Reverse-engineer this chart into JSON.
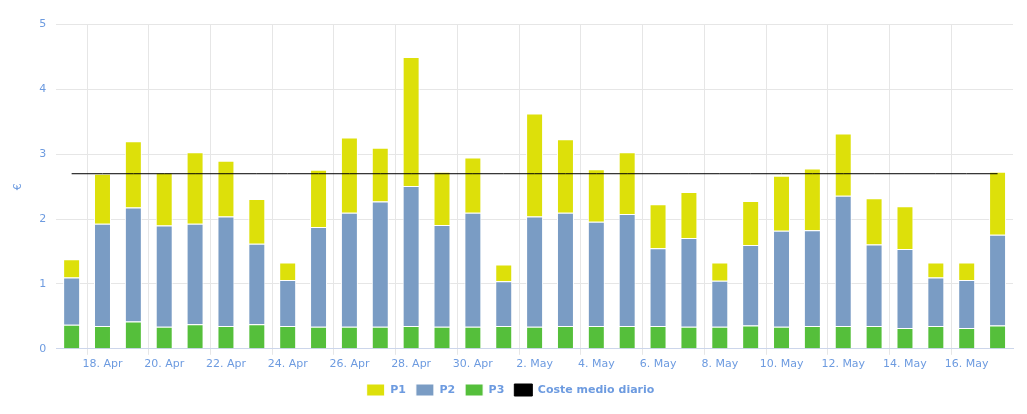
{
  "chart_data": {
    "type": "bar",
    "stacked": true,
    "ylabel": "€",
    "categories": [
      null,
      "18. Apr",
      null,
      "20. Apr",
      null,
      "22. Apr",
      null,
      "24. Apr",
      null,
      "26. Apr",
      null,
      "28. Apr",
      null,
      "30. Apr",
      null,
      "2. May",
      null,
      "4. May",
      null,
      "6. May",
      null,
      "8. May",
      null,
      "10. May",
      null,
      "12. May",
      null,
      "14. May",
      null,
      "16. May",
      null
    ],
    "series": [
      {
        "name": "P3",
        "color": "#55bf3b",
        "values": [
          0.37,
          0.35,
          0.42,
          0.34,
          0.38,
          0.35,
          0.38,
          0.35,
          0.34,
          0.34,
          0.34,
          0.35,
          0.34,
          0.34,
          0.35,
          0.34,
          0.35,
          0.35,
          0.35,
          0.35,
          0.34,
          0.34,
          0.36,
          0.34,
          0.35,
          0.35,
          0.35,
          0.32,
          0.35,
          0.32,
          0.36
        ]
      },
      {
        "name": "P2",
        "color": "#7a9cc4",
        "values": [
          0.73,
          1.58,
          1.76,
          1.56,
          1.55,
          1.69,
          1.24,
          0.71,
          1.54,
          1.76,
          1.93,
          2.16,
          1.57,
          1.76,
          0.69,
          1.7,
          1.75,
          1.61,
          1.73,
          1.2,
          1.37,
          0.71,
          1.24,
          1.48,
          1.48,
          2.01,
          1.26,
          1.22,
          0.75,
          0.74,
          1.4
        ]
      },
      {
        "name": "P1",
        "color": "#dde00a",
        "values": [
          0.28,
          0.77,
          1.02,
          0.82,
          1.1,
          0.86,
          0.69,
          0.27,
          0.88,
          1.16,
          0.83,
          1.99,
          0.82,
          0.85,
          0.26,
          1.59,
          1.13,
          0.81,
          0.95,
          0.68,
          0.71,
          0.28,
          0.68,
          0.85,
          0.95,
          0.96,
          0.71,
          0.66,
          0.23,
          0.27,
          0.97
        ]
      },
      {
        "name": "Coste medio diario",
        "type": "line",
        "color": "#000000",
        "marker": "none",
        "values": [
          2.7,
          2.7,
          2.7,
          2.7,
          2.7,
          2.7,
          2.7,
          2.7,
          2.7,
          2.7,
          2.7,
          2.7,
          2.7,
          2.7,
          2.7,
          2.7,
          2.7,
          2.7,
          2.7,
          2.7,
          2.7,
          2.7,
          2.7,
          2.7,
          2.7,
          2.7,
          2.7,
          2.7,
          2.7,
          2.7,
          2.7
        ]
      }
    ],
    "ylim": [
      0,
      5
    ],
    "yticks": [
      0,
      1,
      2,
      3,
      4,
      5
    ],
    "grid": true,
    "legend": "bottom"
  }
}
